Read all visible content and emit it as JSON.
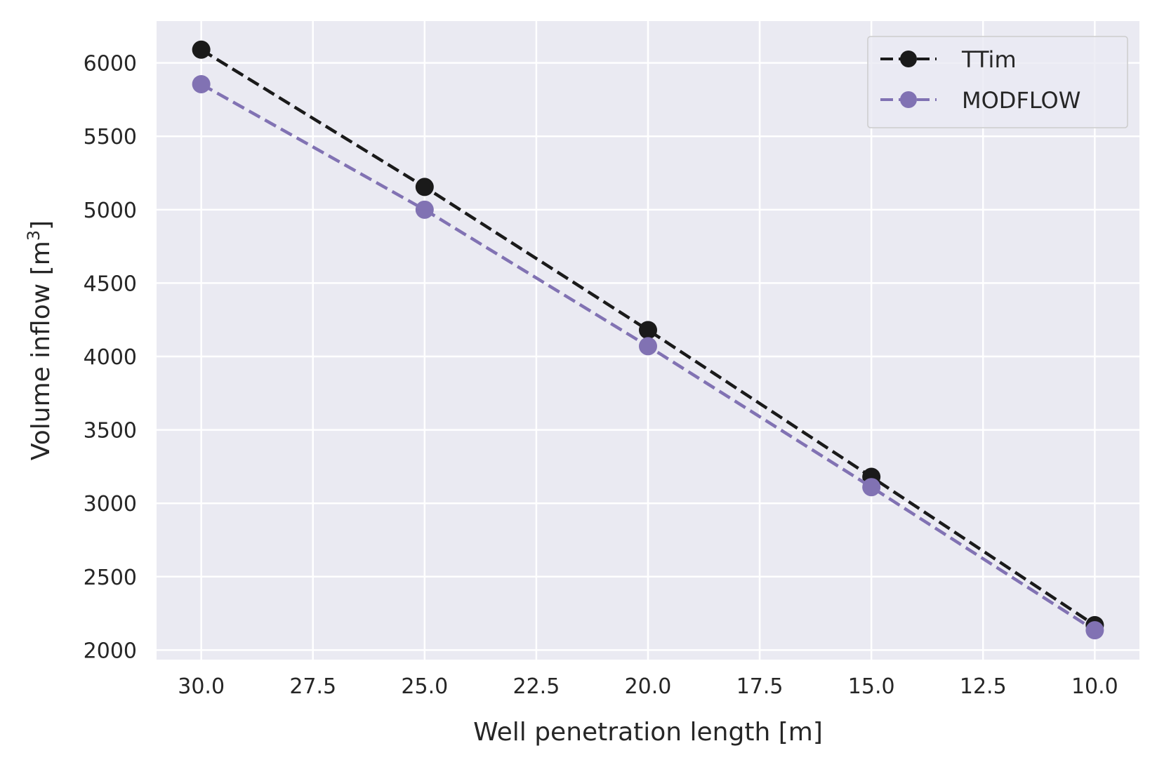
{
  "chart_data": {
    "type": "line",
    "xlabel": "Well penetration length [m]",
    "ylabel_main": "Volume inflow [m",
    "ylabel_sup": "3",
    "ylabel_end": "]",
    "x_inverted": true,
    "xlim": [
      31.0,
      9.0
    ],
    "ylim": [
      1935,
      6285
    ],
    "xticks": [
      30.0,
      27.5,
      25.0,
      22.5,
      20.0,
      17.5,
      15.0,
      12.5,
      10.0
    ],
    "xtick_labels": [
      "30.0",
      "27.5",
      "25.0",
      "22.5",
      "20.0",
      "17.5",
      "15.0",
      "12.5",
      "10.0"
    ],
    "yticks": [
      2000,
      2500,
      3000,
      3500,
      4000,
      4500,
      5000,
      5500,
      6000
    ],
    "ytick_labels": [
      "2000",
      "2500",
      "3000",
      "3500",
      "4000",
      "4500",
      "5000",
      "5500",
      "6000"
    ],
    "grid": true,
    "background": "#EAEAF2",
    "legend_position": "top-right",
    "x": [
      30,
      25,
      20,
      15,
      10
    ],
    "series": [
      {
        "name": "TTim",
        "color": "#1A1A1A",
        "values": [
          6090,
          5155,
          4180,
          3180,
          2170
        ]
      },
      {
        "name": "MODFLOW",
        "color": "#8172B3",
        "values": [
          5855,
          5000,
          4070,
          3110,
          2135
        ]
      }
    ]
  }
}
